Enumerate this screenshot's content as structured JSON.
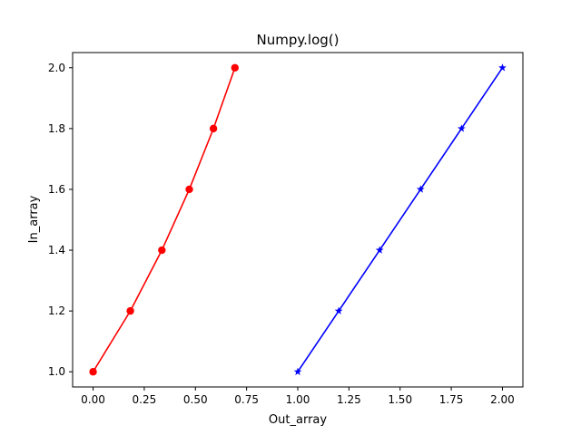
{
  "chart_data": {
    "type": "line",
    "title": "Numpy.log()",
    "xlabel": "Out_array",
    "ylabel": "In_array",
    "xlim": [
      -0.1,
      2.1
    ],
    "ylim": [
      0.95,
      2.05
    ],
    "x_ticks": [
      0.0,
      0.25,
      0.5,
      0.75,
      1.0,
      1.25,
      1.5,
      1.75,
      2.0
    ],
    "x_tick_labels": [
      "0.00",
      "0.25",
      "0.50",
      "0.75",
      "1.00",
      "1.25",
      "1.50",
      "1.75",
      "2.00"
    ],
    "y_ticks": [
      1.0,
      1.2,
      1.4,
      1.6,
      1.8,
      2.0
    ],
    "y_tick_labels": [
      "1.0",
      "1.2",
      "1.4",
      "1.6",
      "1.8",
      "2.0"
    ],
    "grid": false,
    "legend": "none",
    "series": [
      {
        "color": "#ff0000",
        "marker": "circle",
        "x": [
          0.0,
          0.182,
          0.336,
          0.47,
          0.588,
          0.693
        ],
        "y": [
          1.0,
          1.2,
          1.4,
          1.6,
          1.8,
          2.0
        ]
      },
      {
        "color": "#0000ff",
        "marker": "star",
        "x": [
          1.0,
          1.2,
          1.4,
          1.6,
          1.8,
          2.0
        ],
        "y": [
          1.0,
          1.2,
          1.4,
          1.6,
          1.8,
          2.0
        ]
      }
    ]
  }
}
